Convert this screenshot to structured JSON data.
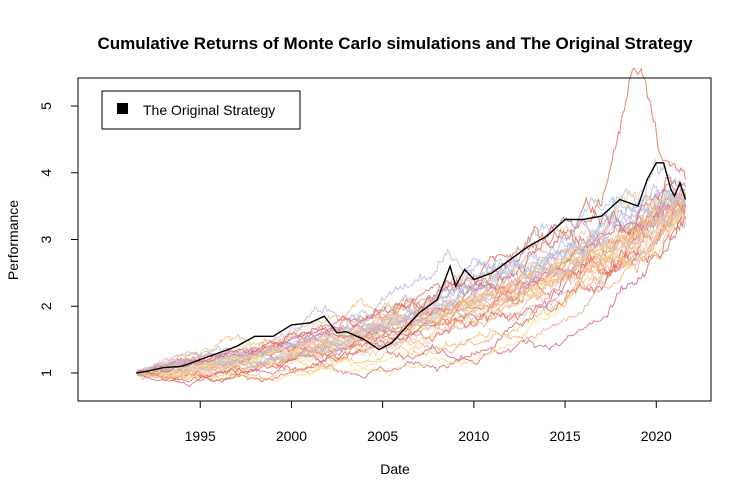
{
  "chart_data": {
    "type": "line",
    "title": "Cumulative Returns of Monte Carlo simulations and The Original Strategy",
    "xlabel": "Date",
    "ylabel": "Performance",
    "x_range": [
      1991.5,
      2021.6
    ],
    "xlim": [
      1988.3,
      2023.0
    ],
    "ylim": [
      0.58,
      5.42
    ],
    "x_ticks": [
      "1995",
      "2000",
      "2005",
      "2010",
      "2015",
      "2020"
    ],
    "y_ticks": [
      "1",
      "2",
      "3",
      "4",
      "5"
    ],
    "grid": false,
    "legend": {
      "position": "top-left",
      "entries": [
        "The Original Strategy"
      ]
    },
    "simulation_colors": [
      "#e76f5a",
      "#f3a98c",
      "#f0c27a",
      "#f7dd8a",
      "#a9c4e3",
      "#c7b3e0",
      "#d86a7a",
      "#f4c9a8"
    ],
    "simulations": {
      "count": 40,
      "description_values": {
        "end_range": [
          3.25,
          3.85
        ],
        "max_peak": {
          "x": 2018.9,
          "y": 5.1
        }
      }
    },
    "series": [
      {
        "name": "The Original Strategy",
        "color": "#000000",
        "x": [
          1991.5,
          1992,
          1993,
          1994,
          1995,
          1996,
          1997,
          1998,
          1999,
          2000,
          2001,
          2001.8,
          2002.5,
          2003,
          2004,
          2004.8,
          2005.5,
          2006,
          2007,
          2008,
          2008.7,
          2009,
          2009.5,
          2010,
          2011,
          2012,
          2013,
          2014,
          2015,
          2016,
          2017,
          2018,
          2019,
          2019.5,
          2020,
          2020.4,
          2020.8,
          2021,
          2021.3,
          2021.6
        ],
        "y": [
          1.0,
          1.02,
          1.08,
          1.1,
          1.2,
          1.3,
          1.4,
          1.55,
          1.55,
          1.72,
          1.75,
          1.85,
          1.6,
          1.62,
          1.5,
          1.35,
          1.45,
          1.6,
          1.9,
          2.1,
          2.6,
          2.3,
          2.55,
          2.4,
          2.5,
          2.7,
          2.9,
          3.05,
          3.3,
          3.3,
          3.35,
          3.6,
          3.5,
          3.9,
          4.15,
          4.15,
          3.75,
          3.65,
          3.85,
          3.6
        ]
      }
    ]
  }
}
